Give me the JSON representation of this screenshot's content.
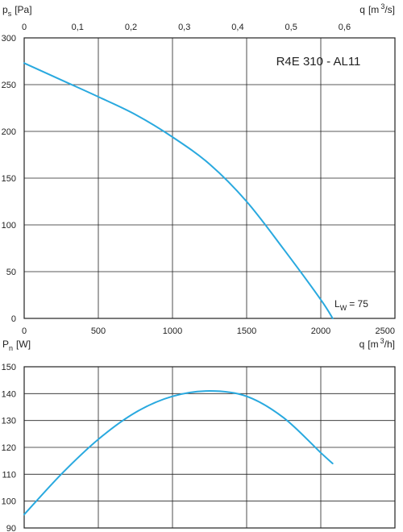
{
  "colors": {
    "curve": "#29a9df",
    "grid": "#222222"
  },
  "chart_data": [
    {
      "type": "line",
      "title": "R4E 310 - AL11",
      "ylabel": {
        "symbol": "p",
        "subscript": "s",
        "unit": "[Pa]"
      },
      "x_bottom_ticks": [
        "0",
        "500",
        "1000",
        "1500",
        "2000",
        "2500"
      ],
      "x_top_label": {
        "symbol": "q",
        "unit_pre": "[m",
        "unit_sup": "3",
        "unit_post": "/s]"
      },
      "x_top_ticks": [
        "0",
        "0,1",
        "0,2",
        "0,3",
        "0,4",
        "0,5",
        "0,6"
      ],
      "y_ticks": [
        "0",
        "50",
        "100",
        "150",
        "200",
        "250",
        "300"
      ],
      "xlim": [
        0,
        2500
      ],
      "ylim": [
        0,
        300
      ],
      "grid": true,
      "annotation": {
        "symbol": "L",
        "subscript": "W",
        "text": "= 75"
      },
      "series": [
        {
          "x": [
            0,
            250,
            500,
            750,
            1000,
            1250,
            1500,
            1750,
            2000,
            2080
          ],
          "y": [
            273,
            255,
            237,
            218,
            194,
            165,
            125,
            74,
            20,
            0
          ]
        }
      ]
    },
    {
      "type": "line",
      "ylabel": {
        "symbol": "P",
        "subscript": "n",
        "unit": "[W]"
      },
      "xlabel": {
        "symbol": "q",
        "unit_pre": "[m",
        "unit_sup": "3",
        "unit_post": "/h]"
      },
      "y_ticks": [
        "90",
        "100",
        "110",
        "120",
        "130",
        "140",
        "150"
      ],
      "xlim": [
        0,
        2500
      ],
      "ylim": [
        90,
        150
      ],
      "grid": true,
      "series": [
        {
          "x": [
            0,
            250,
            500,
            750,
            1000,
            1250,
            1500,
            1750,
            2000,
            2080
          ],
          "y": [
            95,
            110,
            123,
            133,
            139,
            141,
            139,
            131,
            118,
            114
          ]
        }
      ]
    }
  ]
}
